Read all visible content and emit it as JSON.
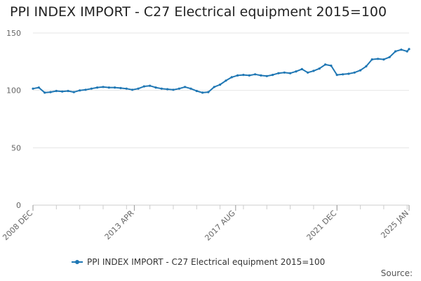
{
  "title": "PPI INDEX IMPORT - C27 Electrical equipment 2015=100",
  "source_label": "Source:",
  "colors": {
    "series": "#1f77b4",
    "grid": "#e6e6e6",
    "axis": "#cccccc",
    "text": "#666666"
  },
  "chart_data": {
    "type": "line",
    "title": "PPI INDEX IMPORT - C27 Electrical equipment 2015=100",
    "xlabel": "",
    "ylabel": "",
    "ylim": [
      0,
      150
    ],
    "yticks": [
      0,
      50,
      100,
      150
    ],
    "xlim": [
      "2008-12",
      "2025-01"
    ],
    "xticks": [
      {
        "date": "2008-12",
        "label": "2008 DEC"
      },
      {
        "date": "2013-04",
        "label": "2013 APR"
      },
      {
        "date": "2017-08",
        "label": "2017 AUG"
      },
      {
        "date": "2021-12",
        "label": "2021 DEC"
      },
      {
        "date": "2025-01",
        "label": "2025 JAN"
      }
    ],
    "grid": "horizontal",
    "legend_position": "bottom",
    "series": [
      {
        "name": "PPI INDEX IMPORT - C27 Electrical equipment 2015=100",
        "points": [
          [
            "2008-12",
            101.5
          ],
          [
            "2009-03",
            102.5
          ],
          [
            "2009-06",
            98.0
          ],
          [
            "2009-09",
            98.5
          ],
          [
            "2009-12",
            99.5
          ],
          [
            "2010-03",
            99.0
          ],
          [
            "2010-06",
            99.5
          ],
          [
            "2010-09",
            98.5
          ],
          [
            "2010-12",
            100.0
          ],
          [
            "2011-03",
            100.5
          ],
          [
            "2011-06",
            101.5
          ],
          [
            "2011-09",
            102.5
          ],
          [
            "2011-12",
            103.0
          ],
          [
            "2012-03",
            102.5
          ],
          [
            "2012-06",
            102.5
          ],
          [
            "2012-09",
            102.0
          ],
          [
            "2012-12",
            101.5
          ],
          [
            "2013-03",
            100.5
          ],
          [
            "2013-06",
            101.5
          ],
          [
            "2013-09",
            103.5
          ],
          [
            "2013-12",
            104.0
          ],
          [
            "2014-03",
            102.5
          ],
          [
            "2014-06",
            101.5
          ],
          [
            "2014-09",
            101.0
          ],
          [
            "2014-12",
            100.5
          ],
          [
            "2015-03",
            101.5
          ],
          [
            "2015-06",
            103.0
          ],
          [
            "2015-09",
            101.5
          ],
          [
            "2015-12",
            99.5
          ],
          [
            "2016-03",
            98.0
          ],
          [
            "2016-06",
            98.5
          ],
          [
            "2016-09",
            103.0
          ],
          [
            "2016-12",
            105.0
          ],
          [
            "2017-03",
            108.5
          ],
          [
            "2017-06",
            111.5
          ],
          [
            "2017-09",
            113.0
          ],
          [
            "2017-12",
            113.5
          ],
          [
            "2018-03",
            113.0
          ],
          [
            "2018-06",
            114.0
          ],
          [
            "2018-09",
            113.0
          ],
          [
            "2018-12",
            112.5
          ],
          [
            "2019-03",
            113.5
          ],
          [
            "2019-06",
            115.0
          ],
          [
            "2019-09",
            115.5
          ],
          [
            "2019-12",
            115.0
          ],
          [
            "2020-03",
            116.5
          ],
          [
            "2020-06",
            118.5
          ],
          [
            "2020-09",
            115.5
          ],
          [
            "2020-12",
            117.0
          ],
          [
            "2021-03",
            119.0
          ],
          [
            "2021-06",
            122.5
          ],
          [
            "2021-09",
            121.5
          ],
          [
            "2021-12",
            113.5
          ],
          [
            "2022-03",
            114.0
          ],
          [
            "2022-06",
            114.5
          ],
          [
            "2022-09",
            115.5
          ],
          [
            "2022-12",
            117.5
          ],
          [
            "2023-03",
            121.0
          ],
          [
            "2023-06",
            127.0
          ],
          [
            "2023-09",
            127.5
          ],
          [
            "2023-12",
            127.0
          ],
          [
            "2024-03",
            129.0
          ],
          [
            "2024-06",
            134.0
          ],
          [
            "2024-09",
            135.5
          ],
          [
            "2024-12",
            134.0
          ],
          [
            "2025-01",
            136.0
          ]
        ]
      }
    ]
  }
}
